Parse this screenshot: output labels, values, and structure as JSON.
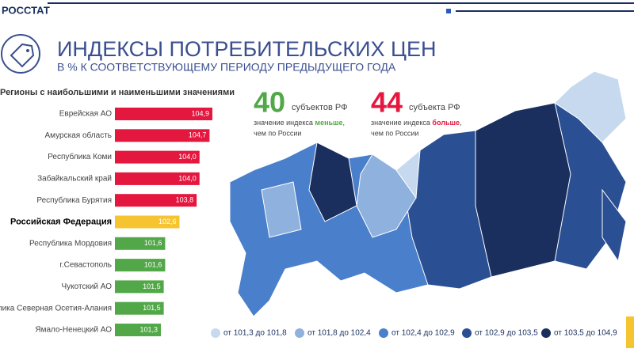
{
  "header": {
    "brand": "РОССТАТ",
    "title": "ИНДЕКСЫ ПОТРЕБИТЕЛЬСКИХ ЦЕН",
    "subtitle": "В % К СООТВЕТСТВУЮЩЕМУ ПЕРИОДУ ПРЕДЫДУЩЕГО ГОДА"
  },
  "chart_data": {
    "type": "bar",
    "orientation": "horizontal",
    "title": "Регионы с наибольшими и наименьшими значениями",
    "categories": [
      "Еврейская АО",
      "Амурская область",
      "Республика Коми",
      "Забайкальский край",
      "Республика Бурятия",
      "Российская Федерация",
      "Республика Мордовия",
      "г.Севастополь",
      "Чукотский АО",
      "Республика Северная Осетия-Алания",
      "Ямало-Ненецкий АО"
    ],
    "values": [
      104.9,
      104.7,
      104.0,
      104.0,
      103.8,
      102.6,
      101.6,
      101.6,
      101.5,
      101.5,
      101.3
    ],
    "value_labels": [
      "104,9",
      "104,7",
      "104,0",
      "104,0",
      "103,8",
      "102,6",
      "101,6",
      "101,6",
      "101,5",
      "101,5",
      "101,3"
    ],
    "colors": [
      "#e4173e",
      "#e4173e",
      "#e4173e",
      "#e4173e",
      "#e4173e",
      "#f7c431",
      "#52a848",
      "#52a848",
      "#52a848",
      "#52a848",
      "#52a848"
    ],
    "emphasis": [
      false,
      false,
      false,
      false,
      false,
      true,
      false,
      false,
      false,
      false,
      false
    ]
  },
  "stats": [
    {
      "number": "40",
      "unit": "субъектов РФ",
      "pre": "значение индекса ",
      "key": "меньше",
      "post": ",",
      "line2": "чем по России",
      "color": "#52a848"
    },
    {
      "number": "44",
      "unit": "субъекта РФ",
      "pre": "значение индекса ",
      "key": "больше",
      "post": ",",
      "line2": "чем по России",
      "color": "#e4173e"
    }
  ],
  "map": {
    "legend": [
      {
        "label": "от 101,3 до 101,8",
        "color": "#c6d9ef"
      },
      {
        "label": "от 101,8 до 102,4",
        "color": "#8fb1de"
      },
      {
        "label": "от 102,4 до 102,9",
        "color": "#4a7fcb"
      },
      {
        "label": "от 102,9 до 103,5",
        "color": "#2a4f93"
      },
      {
        "label": "от 103,5 до 104,9",
        "color": "#1a2f5e"
      }
    ]
  }
}
